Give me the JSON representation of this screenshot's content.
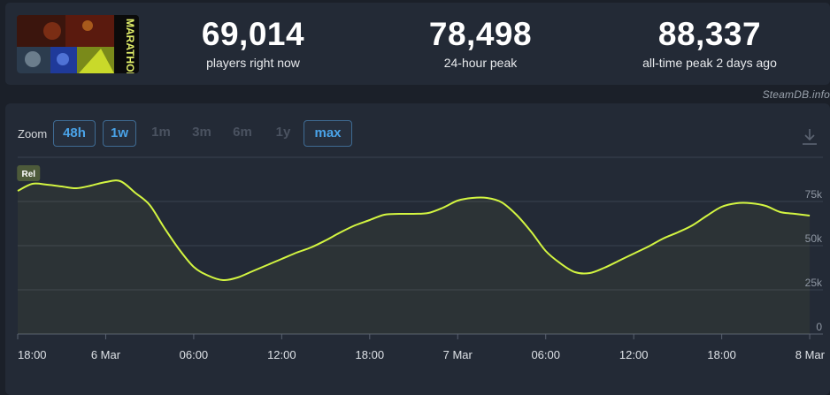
{
  "stats": [
    {
      "value": "69,014",
      "label": "players right now"
    },
    {
      "value": "78,498",
      "label": "24-hour peak"
    },
    {
      "value": "88,337",
      "label": "all-time peak 2 days ago"
    }
  ],
  "thumbnail": {
    "alt_text": "MARATHON"
  },
  "credit": "SteamDB.info",
  "zoom": {
    "label": "Zoom",
    "options": [
      {
        "label": "48h",
        "active": true
      },
      {
        "label": "1w",
        "active": true
      },
      {
        "label": "1m",
        "active": false
      },
      {
        "label": "3m",
        "active": false
      },
      {
        "label": "6m",
        "active": false
      },
      {
        "label": "1y",
        "active": false
      },
      {
        "label": "max",
        "active": true
      }
    ]
  },
  "icons": {
    "download": "download-icon"
  },
  "colors": {
    "line": "#d3f541",
    "grid": "#3a4150",
    "panel": "#232a36",
    "accent": "#4aa3e8"
  },
  "chart_data": {
    "type": "area",
    "title": "",
    "series": [
      {
        "name": "Players",
        "color": "#d3f541"
      }
    ],
    "x_hours": [
      0,
      1,
      2,
      3,
      4,
      5,
      6,
      7,
      8,
      9,
      10,
      11,
      12,
      13,
      14,
      15,
      16,
      17,
      18,
      19,
      20,
      21,
      22,
      23,
      24,
      25,
      26,
      27,
      28,
      29,
      30,
      31,
      32,
      33,
      34,
      35,
      36,
      37,
      38,
      39,
      40,
      41,
      42,
      43,
      44,
      45,
      46,
      47,
      48,
      49,
      50,
      51,
      52,
      53,
      54
    ],
    "values": [
      81000,
      85000,
      84500,
      83500,
      82500,
      84000,
      86000,
      86500,
      80000,
      73000,
      60000,
      48000,
      38000,
      33000,
      30500,
      32000,
      35500,
      39000,
      42500,
      46000,
      49000,
      53000,
      57500,
      61500,
      64500,
      67500,
      68000,
      68000,
      68500,
      71500,
      75500,
      77000,
      77000,
      74500,
      67500,
      58000,
      47000,
      40000,
      35000,
      34500,
      37500,
      41500,
      45500,
      49500,
      54000,
      57500,
      61500,
      67000,
      72000,
      74000,
      74000,
      72500,
      69000,
      68000,
      67000
    ],
    "x_ticks": [
      {
        "hour": 0,
        "label": "18:00"
      },
      {
        "hour": 6,
        "label": "6 Mar"
      },
      {
        "hour": 12,
        "label": "06:00"
      },
      {
        "hour": 18,
        "label": "12:00"
      },
      {
        "hour": 24,
        "label": "18:00"
      },
      {
        "hour": 30,
        "label": "7 Mar"
      },
      {
        "hour": 36,
        "label": "06:00"
      },
      {
        "hour": 42,
        "label": "12:00"
      },
      {
        "hour": 48,
        "label": "18:00"
      },
      {
        "hour": 54,
        "label": "8 Mar"
      }
    ],
    "y_ticks": [
      {
        "value": 0,
        "label": "0"
      },
      {
        "value": 25000,
        "label": "25k"
      },
      {
        "value": 50000,
        "label": "50k"
      },
      {
        "value": 75000,
        "label": "75k"
      }
    ],
    "ylim": [
      0,
      100000
    ],
    "grid": true,
    "annotations": [
      {
        "hour": 0.8,
        "label": "Rel"
      }
    ]
  }
}
